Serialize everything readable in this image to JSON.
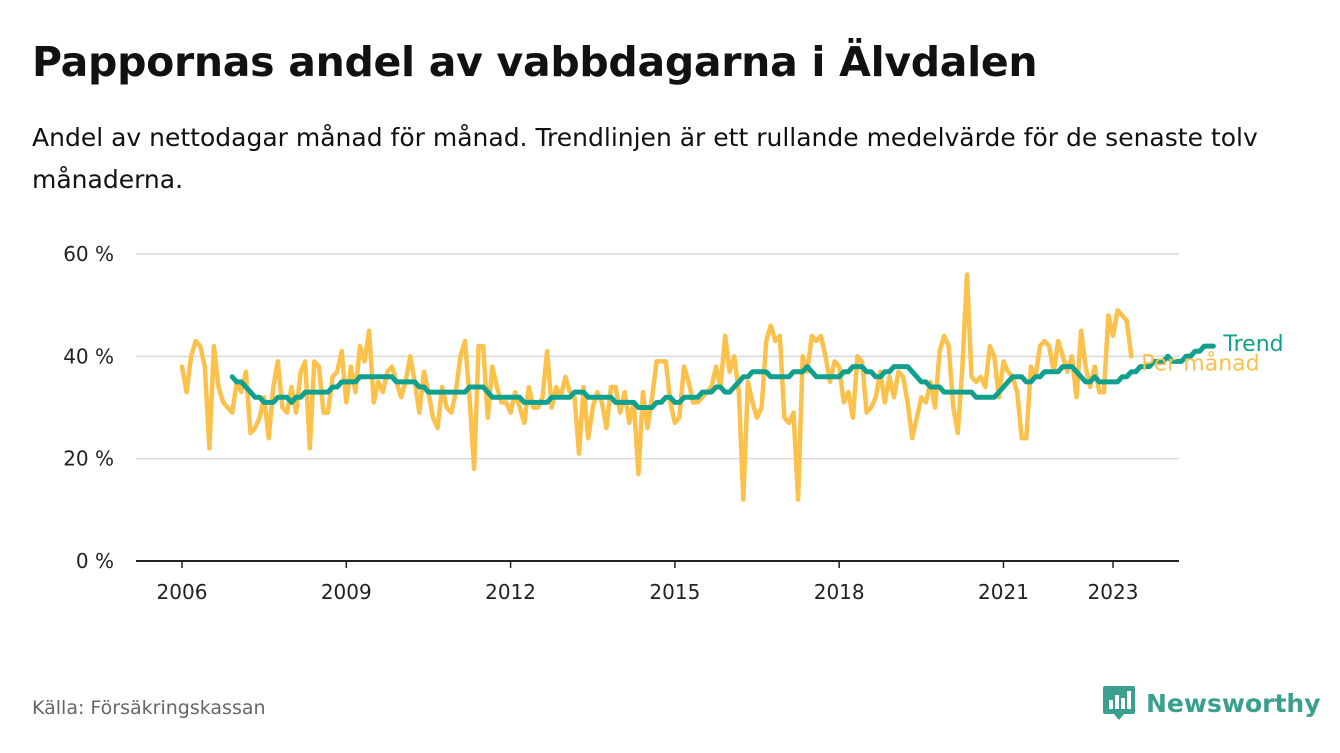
{
  "title": "Pappornas andel av vabbdagarna i Älvdalen",
  "subtitle": "Andel av nettodagar månad för månad. Trendlinjen är ett rullande medelvärde för de senaste tolv månaderna.",
  "source": "Källa: Försäkringskassan",
  "brand": {
    "name": "Newsworthy",
    "icon": "newsworthy-logo-icon"
  },
  "colors": {
    "monthly": "#fcc14a",
    "trend": "#12a08e",
    "grid": "#d9d9d9",
    "axis": "#222222"
  },
  "chart_data": {
    "type": "line",
    "title": "Pappornas andel av vabbdagarna i Älvdalen",
    "xlabel": "",
    "ylabel": "",
    "xlim": [
      2005.8,
      2023.9
    ],
    "ylim": [
      0,
      60
    ],
    "x_ticks": [
      2006,
      2009,
      2012,
      2015,
      2018,
      2021,
      2023
    ],
    "x_tick_labels": [
      "2006",
      "2009",
      "2012",
      "2015",
      "2018",
      "2021",
      "2023"
    ],
    "y_ticks": [
      0,
      20,
      40,
      60
    ],
    "y_tick_labels": [
      "0 %",
      "20 %",
      "40 %",
      "60 %"
    ],
    "grid": "horizontal",
    "legend": "line-end labels",
    "series": [
      {
        "name": "Per månad",
        "x_start": "2006-01",
        "step": "month",
        "values": [
          38,
          33,
          40,
          43,
          42,
          38,
          22,
          42,
          34,
          31,
          30,
          29,
          35,
          33,
          37,
          25,
          26,
          28,
          32,
          24,
          34,
          39,
          30,
          29,
          34,
          29,
          37,
          39,
          22,
          39,
          38,
          29,
          29,
          36,
          37,
          41,
          31,
          38,
          33,
          42,
          39,
          45,
          31,
          35,
          33,
          37,
          38,
          35,
          32,
          35,
          40,
          35,
          29,
          37,
          33,
          28,
          26,
          34,
          30,
          29,
          33,
          40,
          43,
          32,
          18,
          42,
          42,
          28,
          38,
          34,
          31,
          31,
          29,
          33,
          30,
          27,
          34,
          30,
          30,
          32,
          41,
          30,
          34,
          32,
          36,
          33,
          32,
          21,
          34,
          24,
          30,
          33,
          31,
          26,
          34,
          34,
          29,
          33,
          27,
          31,
          17,
          33,
          26,
          32,
          39,
          39,
          39,
          31,
          27,
          28,
          38,
          35,
          31,
          31,
          32,
          33,
          34,
          38,
          34,
          44,
          37,
          40,
          33,
          12,
          35,
          31,
          28,
          30,
          43,
          46,
          43,
          44,
          28,
          27,
          29,
          12,
          40,
          37,
          44,
          43,
          44,
          40,
          35,
          39,
          38,
          31,
          33,
          28,
          40,
          39,
          29,
          30,
          32,
          37,
          31,
          36,
          32,
          37,
          36,
          31,
          24,
          28,
          32,
          31,
          35,
          30,
          41,
          44,
          42,
          30,
          25,
          38,
          56,
          36,
          35,
          36,
          34,
          42,
          40,
          32,
          39,
          37,
          36,
          33,
          24,
          24,
          38,
          36,
          42,
          43,
          42,
          37,
          43,
          40,
          37,
          40,
          32,
          45,
          38,
          34,
          38,
          33,
          33,
          48,
          44,
          49,
          48,
          47,
          40
        ]
      },
      {
        "name": "Trend",
        "x_start": "2006-12",
        "step": "month",
        "values": [
          36,
          35,
          35,
          34,
          33,
          32,
          32,
          31,
          31,
          31,
          32,
          32,
          32,
          31,
          32,
          32,
          33,
          33,
          33,
          33,
          33,
          33,
          34,
          34,
          35,
          35,
          35,
          35,
          36,
          36,
          36,
          36,
          36,
          36,
          36,
          36,
          35,
          35,
          35,
          35,
          35,
          34,
          34,
          33,
          33,
          33,
          33,
          33,
          33,
          33,
          33,
          33,
          34,
          34,
          34,
          34,
          33,
          32,
          32,
          32,
          32,
          32,
          32,
          32,
          31,
          31,
          31,
          31,
          31,
          31,
          32,
          32,
          32,
          32,
          32,
          33,
          33,
          33,
          32,
          32,
          32,
          32,
          32,
          32,
          31,
          31,
          31,
          31,
          31,
          30,
          30,
          30,
          30,
          31,
          31,
          32,
          32,
          31,
          31,
          32,
          32,
          32,
          32,
          33,
          33,
          33,
          34,
          34,
          33,
          33,
          34,
          35,
          36,
          36,
          37,
          37,
          37,
          37,
          36,
          36,
          36,
          36,
          36,
          37,
          37,
          37,
          38,
          37,
          36,
          36,
          36,
          36,
          36,
          36,
          37,
          37,
          38,
          38,
          38,
          37,
          37,
          36,
          36,
          37,
          37,
          38,
          38,
          38,
          38,
          37,
          36,
          35,
          35,
          34,
          34,
          34,
          33,
          33,
          33,
          33,
          33,
          33,
          33,
          32,
          32,
          32,
          32,
          32,
          33,
          34,
          35,
          36,
          36,
          36,
          35,
          35,
          36,
          36,
          37,
          37,
          37,
          37,
          38,
          38,
          38,
          37,
          36,
          35,
          35,
          36,
          35,
          35,
          35,
          35,
          35,
          36,
          36,
          37,
          37,
          38,
          38,
          38,
          39,
          39,
          39,
          40,
          39,
          39,
          39,
          40,
          40,
          41,
          41,
          42,
          42,
          42
        ]
      }
    ]
  }
}
